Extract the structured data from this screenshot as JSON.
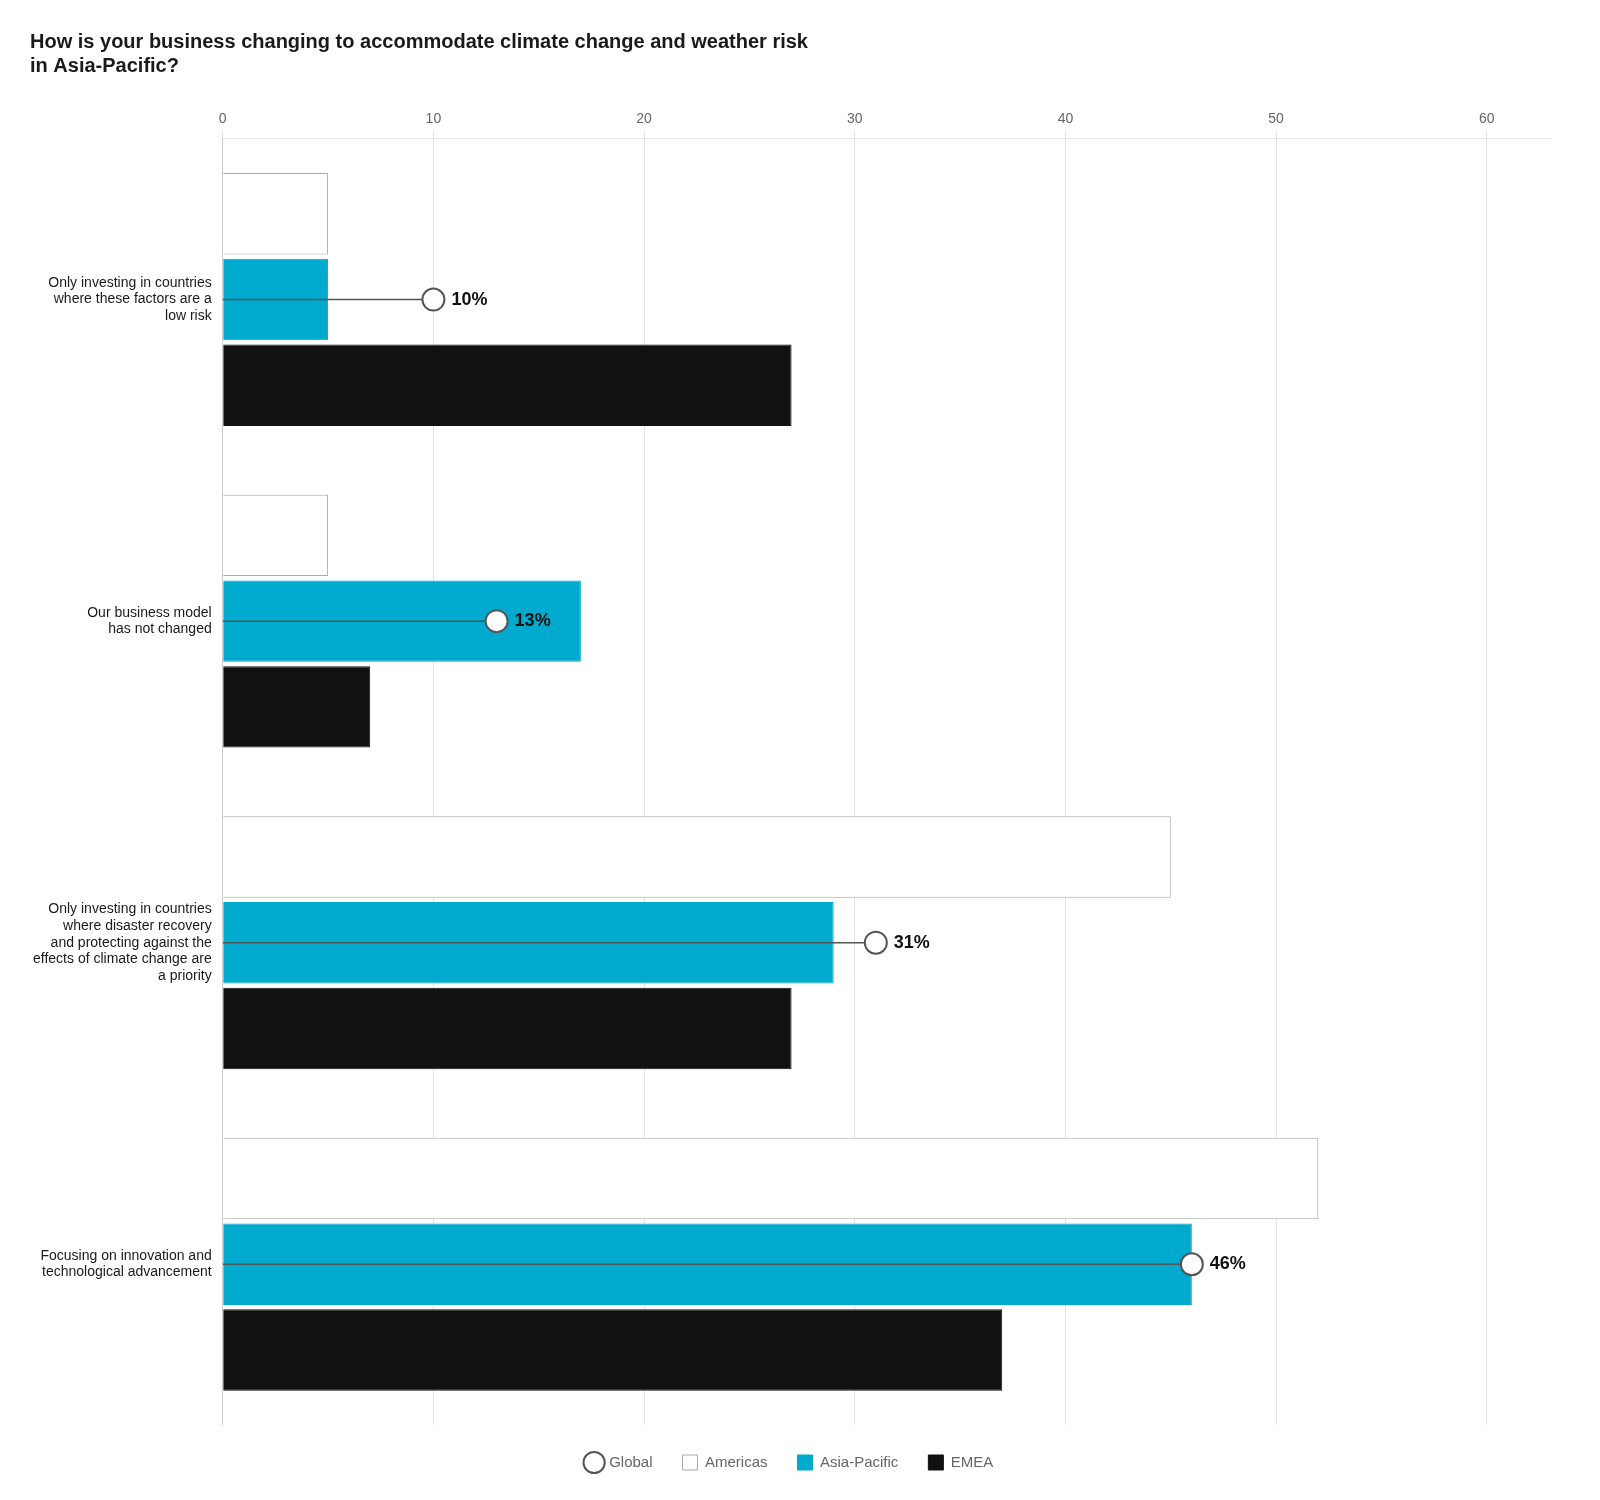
{
  "chart_data": {
    "type": "bar",
    "orientation": "horizontal",
    "title": [
      "How is your business changing to accommodate climate change and weather risk",
      "in Asia-Pacific?"
    ],
    "categories": [
      "Only investing in countries\nwhere these factors are a\nlow risk",
      "Our business model\nhas not changed",
      "Only investing in countries\nwhere disaster recovery\nand protecting against the\neffects of climate change are\na priority",
      "Focusing on innovation and\ntechnological advancement"
    ],
    "series": [
      {
        "name": "Global",
        "type": "line",
        "marker": "circle",
        "color": "#555555",
        "values": [
          10,
          13,
          31,
          46
        ],
        "value_labels": [
          "10%",
          "13%",
          "31%",
          "46%"
        ],
        "data_labels": true
      },
      {
        "name": "Americas",
        "color": "#ffffff",
        "values": [
          5,
          5,
          45,
          52
        ]
      },
      {
        "name": "Asia-Pacific",
        "color": "#00aacf",
        "values": [
          5,
          17,
          29,
          46
        ]
      },
      {
        "name": "EMEA",
        "color": "#111111",
        "values": [
          27,
          7,
          27,
          37
        ]
      }
    ],
    "xlim": [
      0,
      63
    ],
    "xticks": [
      0,
      10,
      20,
      30,
      40,
      50,
      60
    ],
    "grid": true,
    "legend": "bottom"
  }
}
